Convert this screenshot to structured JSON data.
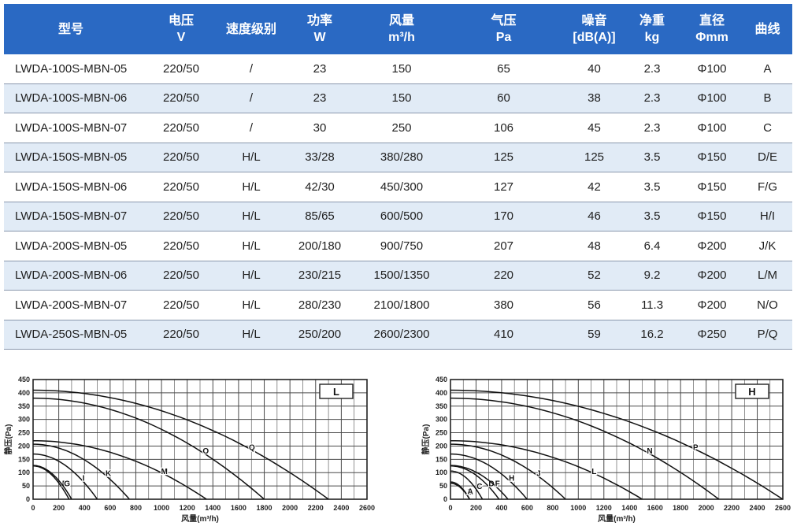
{
  "table": {
    "headers": [
      {
        "line1": "型号",
        "line2": ""
      },
      {
        "line1": "电压",
        "line2": "V"
      },
      {
        "line1": "速度级别",
        "line2": ""
      },
      {
        "line1": "功率",
        "line2": "W"
      },
      {
        "line1": "风量",
        "line2": "m³/h"
      },
      {
        "line1": "气压",
        "line2": "Pa"
      },
      {
        "line1": "噪音",
        "line2": "[dB(A)]"
      },
      {
        "line1": "净重",
        "line2": "kg"
      },
      {
        "line1": "直径",
        "line2": "Φmm"
      },
      {
        "line1": "曲线",
        "line2": ""
      }
    ],
    "rows": [
      [
        "LWDA-100S-MBN-05",
        "220/50",
        "/",
        "23",
        "150",
        "65",
        "40",
        "2.3",
        "Φ100",
        "A"
      ],
      [
        "LWDA-100S-MBN-06",
        "220/50",
        "/",
        "23",
        "150",
        "60",
        "38",
        "2.3",
        "Φ100",
        "B"
      ],
      [
        "LWDA-100S-MBN-07",
        "220/50",
        "/",
        "30",
        "250",
        "106",
        "45",
        "2.3",
        "Φ100",
        "C"
      ],
      [
        "LWDA-150S-MBN-05",
        "220/50",
        "H/L",
        "33/28",
        "380/280",
        "125",
        "125",
        "3.5",
        "Φ150",
        "D/E"
      ],
      [
        "LWDA-150S-MBN-06",
        "220/50",
        "H/L",
        "42/30",
        "450/300",
        "127",
        "42",
        "3.5",
        "Φ150",
        "F/G"
      ],
      [
        "LWDA-150S-MBN-07",
        "220/50",
        "H/L",
        "85/65",
        "600/500",
        "170",
        "46",
        "3.5",
        "Φ150",
        "H/I"
      ],
      [
        "LWDA-200S-MBN-05",
        "220/50",
        "H/L",
        "200/180",
        "900/750",
        "207",
        "48",
        "6.4",
        "Φ200",
        "J/K"
      ],
      [
        "LWDA-200S-MBN-06",
        "220/50",
        "H/L",
        "230/215",
        "1500/1350",
        "220",
        "52",
        "9.2",
        "Φ200",
        "L/M"
      ],
      [
        "LWDA-200S-MBN-07",
        "220/50",
        "H/L",
        "280/230",
        "2100/1800",
        "380",
        "56",
        "11.3",
        "Φ200",
        "N/O"
      ],
      [
        "LWDA-250S-MBN-05",
        "220/50",
        "H/L",
        "250/200",
        "2600/2300",
        "410",
        "59",
        "16.2",
        "Φ250",
        "P/Q"
      ]
    ]
  },
  "chart_data": [
    {
      "type": "line",
      "id": "L",
      "title": "L",
      "xlabel": "风量(m³/h)",
      "ylabel": "静压(Pa)",
      "xlim": [
        0,
        2600
      ],
      "ylim": [
        0,
        450
      ],
      "xticks": [
        "0",
        "200",
        "400",
        "600",
        "800",
        "1000",
        "1200",
        "1400",
        "1600",
        "1800",
        "2000",
        "2200",
        "2400",
        "2600"
      ],
      "yticks": [
        "0",
        "50",
        "100",
        "150",
        "200",
        "250",
        "300",
        "350",
        "400",
        "450"
      ],
      "grid": true,
      "series": [
        {
          "name": "E",
          "pressure": 125,
          "flow": 280
        },
        {
          "name": "G",
          "pressure": 127,
          "flow": 300
        },
        {
          "name": "I",
          "pressure": 170,
          "flow": 500
        },
        {
          "name": "K",
          "pressure": 207,
          "flow": 750
        },
        {
          "name": "M",
          "pressure": 220,
          "flow": 1350
        },
        {
          "name": "O",
          "pressure": 380,
          "flow": 1800
        },
        {
          "name": "Q",
          "pressure": 410,
          "flow": 2300
        }
      ]
    },
    {
      "type": "line",
      "id": "H",
      "title": "H",
      "xlabel": "风量(m³/h)",
      "ylabel": "静压(Pa)",
      "xlim": [
        0,
        2600
      ],
      "ylim": [
        0,
        450
      ],
      "xticks": [
        "0",
        "200",
        "400",
        "600",
        "800",
        "1000",
        "1200",
        "1400",
        "1600",
        "1800",
        "2000",
        "2200",
        "2400",
        "2600"
      ],
      "yticks": [
        "0",
        "50",
        "100",
        "150",
        "200",
        "250",
        "300",
        "350",
        "400",
        "450"
      ],
      "grid": true,
      "series": [
        {
          "name": "B",
          "pressure": 60,
          "flow": 150
        },
        {
          "name": "A",
          "pressure": 65,
          "flow": 150
        },
        {
          "name": "C",
          "pressure": 106,
          "flow": 250
        },
        {
          "name": "D",
          "pressure": 125,
          "flow": 380
        },
        {
          "name": "F",
          "pressure": 127,
          "flow": 450
        },
        {
          "name": "H",
          "pressure": 170,
          "flow": 600
        },
        {
          "name": "J",
          "pressure": 207,
          "flow": 900
        },
        {
          "name": "L",
          "pressure": 220,
          "flow": 1500
        },
        {
          "name": "N",
          "pressure": 380,
          "flow": 2100
        },
        {
          "name": "P",
          "pressure": 410,
          "flow": 2600
        }
      ]
    }
  ]
}
